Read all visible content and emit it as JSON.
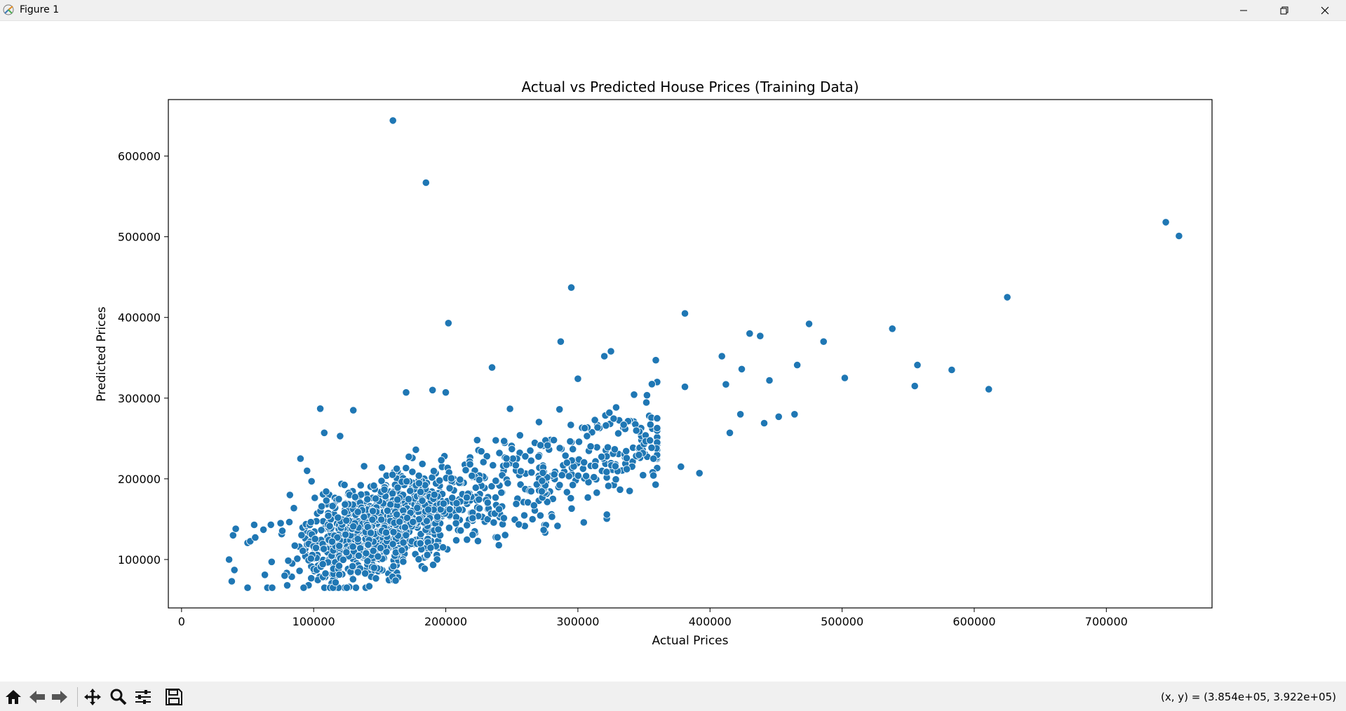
{
  "window": {
    "title": "Figure 1"
  },
  "chart_data": {
    "type": "scatter",
    "title": "Actual vs Predicted House Prices (Training Data)",
    "xlabel": "Actual Prices",
    "ylabel": "Predicted Prices",
    "xlim": [
      -10000,
      780000
    ],
    "ylim": [
      40000,
      670000
    ],
    "xticks": [
      0,
      100000,
      200000,
      300000,
      400000,
      500000,
      600000,
      700000
    ],
    "yticks": [
      100000,
      200000,
      300000,
      400000,
      500000,
      600000
    ],
    "grid": false,
    "color": "#1f77b4",
    "points": [
      [
        160000,
        644000
      ],
      [
        185000,
        567000
      ],
      [
        745000,
        518000
      ],
      [
        755000,
        501000
      ],
      [
        295000,
        437000
      ],
      [
        625000,
        425000
      ],
      [
        202000,
        393000
      ],
      [
        381000,
        405000
      ],
      [
        475000,
        392000
      ],
      [
        430000,
        380000
      ],
      [
        438000,
        377000
      ],
      [
        538000,
        386000
      ],
      [
        486000,
        370000
      ],
      [
        287000,
        370000
      ],
      [
        325000,
        358000
      ],
      [
        320000,
        352000
      ],
      [
        409000,
        352000
      ],
      [
        359000,
        347000
      ],
      [
        557000,
        341000
      ],
      [
        466000,
        341000
      ],
      [
        583000,
        335000
      ],
      [
        235000,
        338000
      ],
      [
        424000,
        336000
      ],
      [
        502000,
        325000
      ],
      [
        300000,
        324000
      ],
      [
        445000,
        322000
      ],
      [
        555000,
        315000
      ],
      [
        611000,
        311000
      ],
      [
        381000,
        314000
      ],
      [
        412000,
        317000
      ],
      [
        105000,
        287000
      ],
      [
        130000,
        285000
      ],
      [
        464000,
        280000
      ],
      [
        452000,
        277000
      ],
      [
        423000,
        280000
      ],
      [
        441000,
        269000
      ],
      [
        415000,
        257000
      ],
      [
        392000,
        207000
      ],
      [
        378000,
        215000
      ],
      [
        337000,
        212000
      ],
      [
        38000,
        73000
      ],
      [
        36000,
        100000
      ],
      [
        40000,
        87000
      ],
      [
        39000,
        130000
      ],
      [
        41000,
        138000
      ],
      [
        80000,
        68000
      ],
      [
        78000,
        80000
      ],
      [
        55000,
        143000
      ],
      [
        62000,
        137000
      ],
      [
        75000,
        145000
      ],
      [
        82000,
        180000
      ],
      [
        90000,
        225000
      ],
      [
        95000,
        210000
      ],
      [
        108000,
        257000
      ],
      [
        120000,
        253000
      ],
      [
        170000,
        307000
      ],
      [
        190000,
        310000
      ],
      [
        200000,
        307000
      ]
    ],
    "cluster": {
      "count": 1300,
      "x_range": [
        50000,
        360000
      ],
      "slope": 0.52,
      "intercept": 60000,
      "spread": 30000
    }
  },
  "toolbar": {
    "items": [
      "home-icon",
      "back-icon",
      "forward-icon",
      "pan-icon",
      "zoom-icon",
      "configure-icon",
      "save-icon"
    ],
    "coords": "(x, y) = (3.854e+05, 3.922e+05)"
  }
}
